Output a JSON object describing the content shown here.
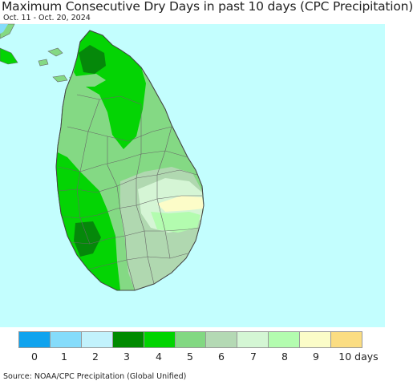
{
  "title": "Maximum Consecutive Dry Days in past 10 days (CPC Precipitation)",
  "subtitle": "Oct. 11 - Oct. 20, 2024",
  "source": "Source: NOAA/CPC Precipitation (Global Unified)",
  "legend": {
    "labels": [
      "0",
      "1",
      "2",
      "3",
      "4",
      "5",
      "6",
      "7",
      "8",
      "9",
      "10 days"
    ],
    "colors": [
      "#0fa3ee",
      "#85dcfb",
      "#c2f2fc",
      "#008a00",
      "#00d400",
      "#82d882",
      "#b4d9b4",
      "#d4f6d4",
      "#b3fcaf",
      "#fbfcc8",
      "#fbdd82"
    ]
  },
  "map_colors": {
    "ocean": "#c3fefe",
    "land_default": "#84d984",
    "dark_green": "#05880a",
    "bright_green": "#04d404",
    "light_green": "#b0d8b0",
    "pale_green": "#d5f5d5",
    "yellow": "#fcfcc8",
    "border": "#666666"
  }
}
